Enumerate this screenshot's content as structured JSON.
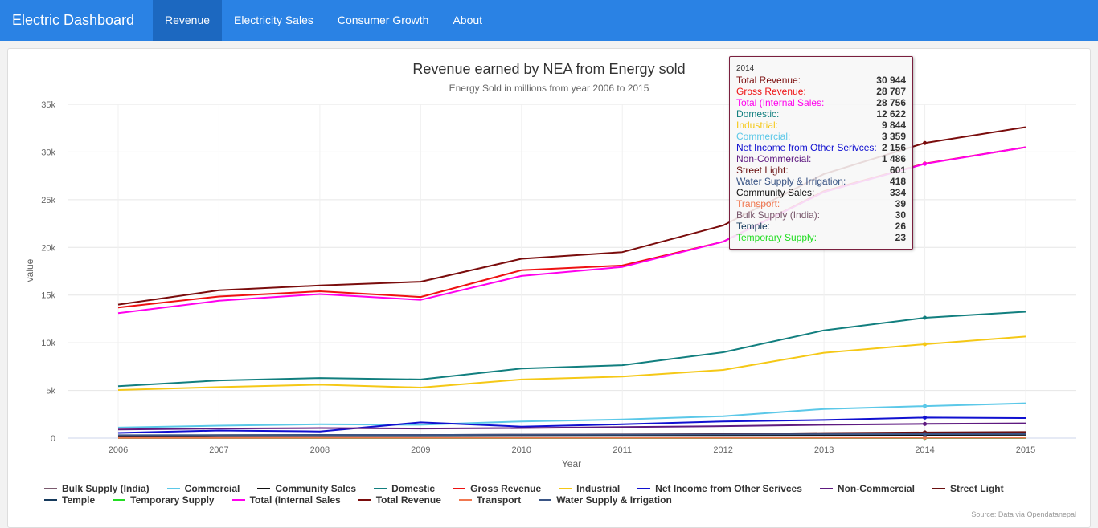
{
  "navbar": {
    "brand": "Electric Dashboard",
    "links": [
      "Revenue",
      "Electricity Sales",
      "Consumer Growth",
      "About"
    ],
    "active": "Revenue"
  },
  "credit": "Source: Data via Opendatanepal",
  "chart_data": {
    "type": "line",
    "title": "Revenue earned by NEA from Energy sold",
    "subtitle": "Energy Sold in millions from year 2006 to 2015",
    "xlabel": "Year",
    "ylabel": "value",
    "x": [
      2006,
      2007,
      2008,
      2009,
      2010,
      2011,
      2012,
      2013,
      2014,
      2015
    ],
    "ylim": [
      0,
      35000
    ],
    "yticks": [
      0,
      5000,
      10000,
      15000,
      20000,
      25000,
      30000,
      35000
    ],
    "ytick_labels": [
      "0",
      "5k",
      "10k",
      "15k",
      "20k",
      "25k",
      "30k",
      "35k"
    ],
    "grid": true,
    "legend_position": "bottom",
    "series": [
      {
        "name": "Bulk Supply (India)",
        "color": "#7b5a6e",
        "values": [
          30,
          30,
          30,
          30,
          30,
          30,
          30,
          30,
          30,
          30
        ]
      },
      {
        "name": "Commercial",
        "color": "#5bc8e8",
        "values": [
          1100,
          1300,
          1450,
          1400,
          1750,
          1950,
          2300,
          3050,
          3359,
          3650
        ]
      },
      {
        "name": "Community Sales",
        "color": "#111111",
        "values": [
          250,
          270,
          290,
          290,
          300,
          310,
          320,
          330,
          334,
          345
        ]
      },
      {
        "name": "Domestic",
        "color": "#127f7f",
        "values": [
          5450,
          6050,
          6300,
          6150,
          7300,
          7650,
          9000,
          11300,
          12622,
          13250
        ]
      },
      {
        "name": "Gross Revenue",
        "color": "#ee1111",
        "values": [
          13700,
          14850,
          15400,
          14800,
          17600,
          18100,
          20600,
          25900,
          28787,
          30500
        ]
      },
      {
        "name": "Industrial",
        "color": "#f5c816",
        "values": [
          5050,
          5350,
          5600,
          5300,
          6150,
          6450,
          7150,
          8950,
          9844,
          10650
        ]
      },
      {
        "name": "Net Income from Other Serivces",
        "color": "#1010d0",
        "values": [
          550,
          800,
          700,
          1650,
          1200,
          1450,
          1750,
          1900,
          2156,
          2100
        ]
      },
      {
        "name": "Non-Commercial",
        "color": "#5e1a80",
        "values": [
          900,
          1000,
          1050,
          1000,
          1050,
          1150,
          1250,
          1400,
          1486,
          1550
        ]
      },
      {
        "name": "Street Light",
        "color": "#6a1010",
        "values": [
          280,
          300,
          320,
          330,
          360,
          390,
          430,
          540,
          601,
          640
        ]
      },
      {
        "name": "Temple",
        "color": "#163a5c",
        "values": [
          20,
          20,
          22,
          22,
          22,
          24,
          24,
          25,
          26,
          27
        ]
      },
      {
        "name": "Temporary Supply",
        "color": "#22dd22",
        "values": [
          15,
          16,
          17,
          17,
          18,
          19,
          20,
          22,
          23,
          24
        ]
      },
      {
        "name": "Total (Internal Sales",
        "color": "#ff00ee",
        "values": [
          13100,
          14400,
          15100,
          14500,
          17000,
          17950,
          20600,
          25800,
          28756,
          30500
        ]
      },
      {
        "name": "Total Revenue",
        "color": "#7a0c0c",
        "values": [
          14000,
          15500,
          16000,
          16400,
          18800,
          19500,
          22300,
          27700,
          30944,
          32600
        ]
      },
      {
        "name": "Transport",
        "color": "#f07850",
        "values": [
          25,
          28,
          30,
          30,
          32,
          34,
          35,
          37,
          39,
          40
        ]
      },
      {
        "name": "Water Supply & Irrigation",
        "color": "#3a5585",
        "values": [
          300,
          320,
          340,
          330,
          360,
          370,
          390,
          410,
          418,
          430
        ]
      }
    ],
    "tooltip": {
      "header": "2014",
      "rows": [
        {
          "label": "Total Revenue:",
          "value": "30 944",
          "color": "#7a0c0c"
        },
        {
          "label": "Gross Revenue:",
          "value": "28 787",
          "color": "#ee1111"
        },
        {
          "label": "Total (Internal Sales:",
          "value": "28 756",
          "color": "#ff00ee"
        },
        {
          "label": "Domestic:",
          "value": "12 622",
          "color": "#127f7f"
        },
        {
          "label": "Industrial:",
          "value": "9 844",
          "color": "#f5c816"
        },
        {
          "label": "Commercial:",
          "value": "3 359",
          "color": "#5bc8e8"
        },
        {
          "label": "Net Income from Other Serivces:",
          "value": "2 156",
          "color": "#1010d0"
        },
        {
          "label": "Non-Commercial:",
          "value": "1 486",
          "color": "#5e1a80"
        },
        {
          "label": "Street Light:",
          "value": "601",
          "color": "#6a1010"
        },
        {
          "label": "Water Supply & Irrigation:",
          "value": "418",
          "color": "#3a5585"
        },
        {
          "label": "Community Sales:",
          "value": "334",
          "color": "#111111"
        },
        {
          "label": "Transport:",
          "value": "39",
          "color": "#f07850"
        },
        {
          "label": "Bulk Supply (India):",
          "value": "30",
          "color": "#7b5a6e"
        },
        {
          "label": "Temple:",
          "value": "26",
          "color": "#163a5c"
        },
        {
          "label": "Temporary Supply:",
          "value": "23",
          "color": "#22dd22"
        }
      ]
    }
  }
}
